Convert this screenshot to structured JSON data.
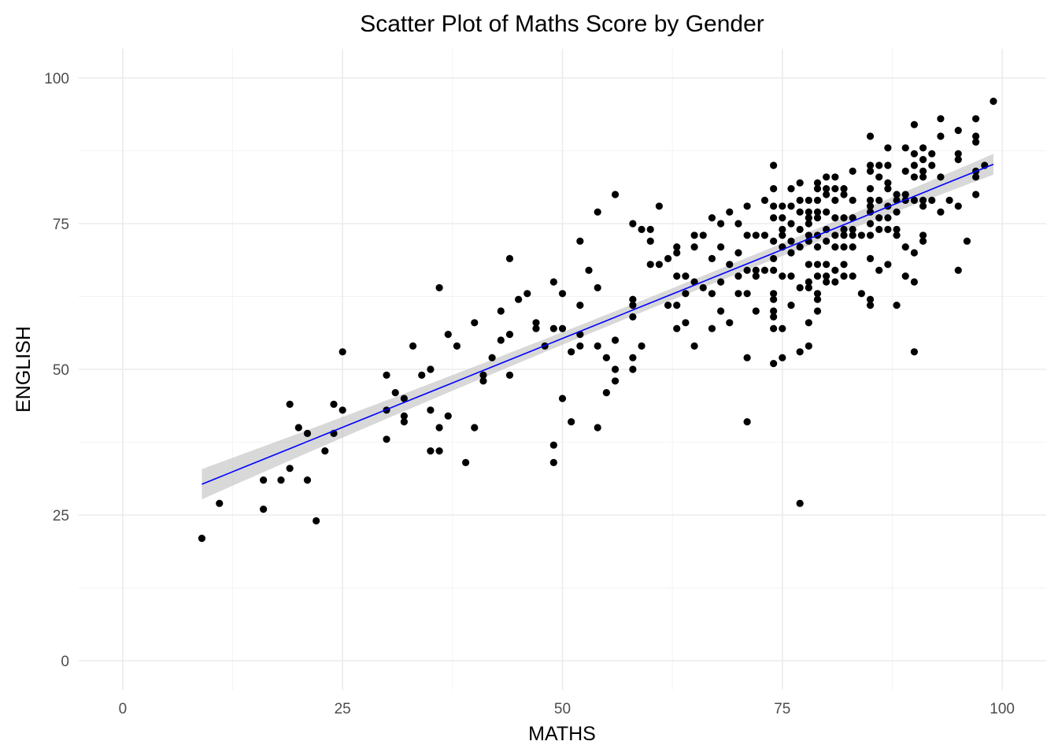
{
  "chart_data": {
    "type": "scatter",
    "title": "Scatter Plot of Maths Score by Gender",
    "xlabel": "MATHS",
    "ylabel": "ENGLISH",
    "xlim": [
      -5,
      105
    ],
    "ylim": [
      -5,
      105
    ],
    "x_ticks": [
      0,
      25,
      50,
      75,
      100
    ],
    "y_ticks": [
      0,
      25,
      50,
      75,
      100
    ],
    "x_tick_labels": [
      "0",
      "25",
      "50",
      "75",
      "100"
    ],
    "y_tick_labels": [
      "0",
      "25",
      "50",
      "75",
      "100"
    ],
    "grid": true,
    "colors": {
      "points": "#000000",
      "trend_line": "#0000ff",
      "confidence_band": "#bebebe"
    },
    "trend_line": {
      "method": "linear",
      "x_range": [
        9,
        99
      ],
      "intercept": 24.8,
      "slope": 0.61,
      "band_halfwidth_ends": 2.6,
      "band_halfwidth_mid": 1.0,
      "x_mid": 62
    },
    "points": [
      [
        9,
        21
      ],
      [
        11,
        27
      ],
      [
        16,
        31
      ],
      [
        16,
        26
      ],
      [
        18,
        31
      ],
      [
        19,
        44
      ],
      [
        19,
        33
      ],
      [
        20,
        40
      ],
      [
        21,
        39
      ],
      [
        21,
        31
      ],
      [
        22,
        24
      ],
      [
        23,
        36
      ],
      [
        24,
        44
      ],
      [
        24,
        39
      ],
      [
        25,
        53
      ],
      [
        25,
        43
      ],
      [
        30,
        49
      ],
      [
        30,
        43
      ],
      [
        30,
        38
      ],
      [
        31,
        46
      ],
      [
        32,
        45
      ],
      [
        32,
        42
      ],
      [
        32,
        41
      ],
      [
        33,
        54
      ],
      [
        34,
        49
      ],
      [
        35,
        50
      ],
      [
        35,
        43
      ],
      [
        35,
        36
      ],
      [
        36,
        64
      ],
      [
        36,
        40
      ],
      [
        36,
        36
      ],
      [
        37,
        56
      ],
      [
        37,
        42
      ],
      [
        38,
        54
      ],
      [
        39,
        34
      ],
      [
        40,
        58
      ],
      [
        40,
        40
      ],
      [
        41,
        49
      ],
      [
        41,
        48
      ],
      [
        42,
        52
      ],
      [
        43,
        60
      ],
      [
        43,
        55
      ],
      [
        44,
        69
      ],
      [
        44,
        56
      ],
      [
        44,
        49
      ],
      [
        45,
        62
      ],
      [
        46,
        63
      ],
      [
        47,
        58
      ],
      [
        47,
        57
      ],
      [
        48,
        54
      ],
      [
        49,
        65
      ],
      [
        49,
        57
      ],
      [
        49,
        37
      ],
      [
        49,
        34
      ],
      [
        50,
        63
      ],
      [
        50,
        57
      ],
      [
        50,
        45
      ],
      [
        51,
        53
      ],
      [
        51,
        41
      ],
      [
        52,
        72
      ],
      [
        52,
        61
      ],
      [
        52,
        56
      ],
      [
        52,
        54
      ],
      [
        53,
        67
      ],
      [
        54,
        77
      ],
      [
        54,
        64
      ],
      [
        54,
        54
      ],
      [
        54,
        40
      ],
      [
        55,
        52
      ],
      [
        55,
        46
      ],
      [
        56,
        80
      ],
      [
        56,
        55
      ],
      [
        56,
        50
      ],
      [
        56,
        48
      ],
      [
        58,
        75
      ],
      [
        58,
        62
      ],
      [
        58,
        61
      ],
      [
        58,
        59
      ],
      [
        58,
        52
      ],
      [
        58,
        50
      ],
      [
        59,
        74
      ],
      [
        59,
        54
      ],
      [
        60,
        74
      ],
      [
        60,
        72
      ],
      [
        60,
        68
      ],
      [
        61,
        78
      ],
      [
        61,
        68
      ],
      [
        62,
        69
      ],
      [
        62,
        61
      ],
      [
        63,
        71
      ],
      [
        63,
        70
      ],
      [
        63,
        66
      ],
      [
        63,
        61
      ],
      [
        63,
        57
      ],
      [
        64,
        66
      ],
      [
        64,
        63
      ],
      [
        64,
        58
      ],
      [
        65,
        73
      ],
      [
        65,
        71
      ],
      [
        65,
        65
      ],
      [
        65,
        54
      ],
      [
        66,
        73
      ],
      [
        66,
        64
      ],
      [
        67,
        76
      ],
      [
        67,
        69
      ],
      [
        67,
        63
      ],
      [
        67,
        57
      ],
      [
        68,
        75
      ],
      [
        68,
        71
      ],
      [
        68,
        65
      ],
      [
        68,
        60
      ],
      [
        69,
        77
      ],
      [
        69,
        68
      ],
      [
        69,
        58
      ],
      [
        70,
        75
      ],
      [
        70,
        70
      ],
      [
        70,
        66
      ],
      [
        70,
        63
      ],
      [
        71,
        78
      ],
      [
        71,
        73
      ],
      [
        71,
        67
      ],
      [
        71,
        63
      ],
      [
        71,
        52
      ],
      [
        71,
        41
      ],
      [
        72,
        73
      ],
      [
        72,
        67
      ],
      [
        72,
        66
      ],
      [
        72,
        60
      ],
      [
        73,
        79
      ],
      [
        73,
        73
      ],
      [
        73,
        67
      ],
      [
        74,
        85
      ],
      [
        74,
        81
      ],
      [
        74,
        78
      ],
      [
        74,
        76
      ],
      [
        74,
        72
      ],
      [
        74,
        69
      ],
      [
        74,
        67
      ],
      [
        74,
        63
      ],
      [
        74,
        62
      ],
      [
        74,
        59
      ],
      [
        74,
        57
      ],
      [
        74,
        51
      ],
      [
        74,
        60
      ],
      [
        75,
        78
      ],
      [
        75,
        76
      ],
      [
        75,
        74
      ],
      [
        75,
        73
      ],
      [
        75,
        71
      ],
      [
        75,
        66
      ],
      [
        75,
        57
      ],
      [
        75,
        52
      ],
      [
        76,
        81
      ],
      [
        76,
        78
      ],
      [
        76,
        75
      ],
      [
        76,
        72
      ],
      [
        76,
        70
      ],
      [
        76,
        66
      ],
      [
        76,
        61
      ],
      [
        77,
        82
      ],
      [
        77,
        79
      ],
      [
        77,
        77
      ],
      [
        77,
        74
      ],
      [
        77,
        71
      ],
      [
        77,
        64
      ],
      [
        77,
        53
      ],
      [
        77,
        27
      ],
      [
        78,
        79
      ],
      [
        78,
        77
      ],
      [
        78,
        76
      ],
      [
        78,
        75
      ],
      [
        78,
        73
      ],
      [
        78,
        72
      ],
      [
        78,
        68
      ],
      [
        78,
        65
      ],
      [
        78,
        64
      ],
      [
        78,
        58
      ],
      [
        78,
        54
      ],
      [
        79,
        82
      ],
      [
        79,
        81
      ],
      [
        79,
        79
      ],
      [
        79,
        77
      ],
      [
        79,
        76
      ],
      [
        79,
        73
      ],
      [
        79,
        71
      ],
      [
        79,
        68
      ],
      [
        79,
        66
      ],
      [
        79,
        63
      ],
      [
        79,
        60
      ],
      [
        79,
        62
      ],
      [
        80,
        83
      ],
      [
        80,
        81
      ],
      [
        80,
        80
      ],
      [
        80,
        77
      ],
      [
        80,
        74
      ],
      [
        80,
        72
      ],
      [
        80,
        68
      ],
      [
        80,
        66
      ],
      [
        80,
        65
      ],
      [
        81,
        83
      ],
      [
        81,
        81
      ],
      [
        81,
        79
      ],
      [
        81,
        76
      ],
      [
        81,
        73
      ],
      [
        81,
        71
      ],
      [
        81,
        67
      ],
      [
        81,
        65
      ],
      [
        82,
        81
      ],
      [
        82,
        80
      ],
      [
        82,
        76
      ],
      [
        82,
        74
      ],
      [
        82,
        73
      ],
      [
        82,
        71
      ],
      [
        82,
        68
      ],
      [
        82,
        66
      ],
      [
        83,
        84
      ],
      [
        83,
        79
      ],
      [
        83,
        76
      ],
      [
        83,
        74
      ],
      [
        83,
        73
      ],
      [
        83,
        71
      ],
      [
        83,
        66
      ],
      [
        84,
        63
      ],
      [
        84,
        73
      ],
      [
        85,
        90
      ],
      [
        85,
        85
      ],
      [
        85,
        84
      ],
      [
        85,
        81
      ],
      [
        85,
        79
      ],
      [
        85,
        78
      ],
      [
        85,
        77
      ],
      [
        85,
        75
      ],
      [
        85,
        73
      ],
      [
        85,
        69
      ],
      [
        85,
        62
      ],
      [
        85,
        61
      ],
      [
        86,
        85
      ],
      [
        86,
        83
      ],
      [
        86,
        79
      ],
      [
        86,
        76
      ],
      [
        86,
        74
      ],
      [
        86,
        67
      ],
      [
        87,
        88
      ],
      [
        87,
        85
      ],
      [
        87,
        82
      ],
      [
        87,
        81
      ],
      [
        87,
        78
      ],
      [
        87,
        76
      ],
      [
        87,
        74
      ],
      [
        87,
        68
      ],
      [
        88,
        80
      ],
      [
        88,
        79
      ],
      [
        88,
        77
      ],
      [
        88,
        74
      ],
      [
        88,
        73
      ],
      [
        88,
        61
      ],
      [
        89,
        88
      ],
      [
        89,
        84
      ],
      [
        89,
        80
      ],
      [
        89,
        79
      ],
      [
        89,
        71
      ],
      [
        89,
        66
      ],
      [
        90,
        92
      ],
      [
        90,
        87
      ],
      [
        90,
        85
      ],
      [
        90,
        83
      ],
      [
        90,
        79
      ],
      [
        90,
        70
      ],
      [
        90,
        65
      ],
      [
        90,
        53
      ],
      [
        91,
        88
      ],
      [
        91,
        86
      ],
      [
        91,
        84
      ],
      [
        91,
        83
      ],
      [
        91,
        79
      ],
      [
        91,
        73
      ],
      [
        91,
        72
      ],
      [
        91,
        78
      ],
      [
        92,
        87
      ],
      [
        92,
        85
      ],
      [
        92,
        79
      ],
      [
        93,
        93
      ],
      [
        93,
        90
      ],
      [
        93,
        83
      ],
      [
        93,
        77
      ],
      [
        94,
        79
      ],
      [
        95,
        91
      ],
      [
        95,
        87
      ],
      [
        95,
        86
      ],
      [
        95,
        78
      ],
      [
        95,
        67
      ],
      [
        96,
        72
      ],
      [
        97,
        93
      ],
      [
        97,
        90
      ],
      [
        97,
        89
      ],
      [
        97,
        84
      ],
      [
        97,
        83
      ],
      [
        97,
        80
      ],
      [
        98,
        85
      ],
      [
        99,
        96
      ]
    ]
  }
}
